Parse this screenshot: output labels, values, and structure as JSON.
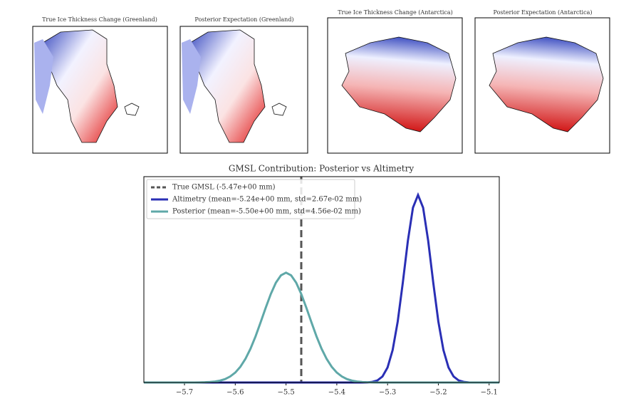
{
  "maps": [
    {
      "title": "True Ice Thickness Change (Greenland)"
    },
    {
      "title": "Posterior Expectation (Greenland)"
    },
    {
      "title": "True Ice Thickness Change (Antarctica)"
    },
    {
      "title": "Posterior Expectation (Antarctica)"
    }
  ],
  "chart_data": {
    "type": "line",
    "title": "GMSL Contribution: Posterior vs Altimetry",
    "x": [
      -5.78,
      -5.77,
      -5.76,
      -5.75,
      -5.74,
      -5.73,
      -5.72,
      -5.71,
      -5.7,
      -5.69,
      -5.68,
      -5.67,
      -5.66,
      -5.65,
      -5.64,
      -5.63,
      -5.62,
      -5.61,
      -5.6,
      -5.59,
      -5.58,
      -5.57,
      -5.56,
      -5.55,
      -5.54,
      -5.53,
      -5.52,
      -5.51,
      -5.5,
      -5.49,
      -5.48,
      -5.47,
      -5.46,
      -5.45,
      -5.44,
      -5.43,
      -5.42,
      -5.41,
      -5.4,
      -5.39,
      -5.38,
      -5.37,
      -5.36,
      -5.35,
      -5.34,
      -5.33,
      -5.32,
      -5.31,
      -5.3,
      -5.29,
      -5.28,
      -5.27,
      -5.26,
      -5.25,
      -5.24,
      -5.23,
      -5.22,
      -5.21,
      -5.2,
      -5.19,
      -5.18,
      -5.17,
      -5.16,
      -5.15,
      -5.14,
      -5.13,
      -5.12,
      -5.11,
      -5.1,
      -5.09,
      -5.08
    ],
    "series": [
      {
        "name": "Altimetry (mean=-5.24e+00 mm, std=2.67e-02 mm)",
        "color": "#2a2fb5",
        "values": [
          0,
          0,
          0,
          0,
          0,
          0,
          0,
          0,
          0,
          0,
          0,
          0,
          0,
          0,
          0,
          0,
          0,
          0,
          0,
          0,
          0,
          0,
          0,
          0,
          0,
          0,
          0,
          0,
          0,
          0,
          0,
          0,
          0,
          0,
          0,
          0,
          0,
          0,
          0,
          0,
          0,
          0,
          0,
          0,
          0.01,
          0.05,
          0.17,
          0.48,
          1.2,
          2.59,
          4.86,
          7.95,
          11.29,
          13.93,
          14.94,
          13.93,
          11.29,
          7.95,
          4.86,
          2.59,
          1.2,
          0.48,
          0.17,
          0.05,
          0.01,
          0,
          0,
          0,
          0,
          0,
          0
        ]
      },
      {
        "name": "Posterior (mean=-5.50e+00 mm, std=4.56e-02 mm)",
        "color": "#5fa8a8",
        "values": [
          0,
          0,
          0,
          0,
          0,
          0,
          0,
          0,
          0,
          0,
          0,
          0.01,
          0.02,
          0.04,
          0.08,
          0.15,
          0.27,
          0.48,
          0.79,
          1.25,
          1.88,
          2.69,
          3.68,
          4.8,
          5.96,
          7.05,
          7.95,
          8.54,
          8.75,
          8.54,
          7.95,
          7.05,
          5.96,
          4.8,
          3.68,
          2.69,
          1.88,
          1.25,
          0.79,
          0.48,
          0.27,
          0.15,
          0.08,
          0.04,
          0.02,
          0.01,
          0,
          0,
          0,
          0,
          0,
          0,
          0,
          0,
          0,
          0,
          0,
          0,
          0,
          0,
          0,
          0,
          0,
          0,
          0,
          0,
          0,
          0,
          0,
          0,
          0
        ]
      }
    ],
    "vlines": [
      {
        "name": "True GMSL (-5.47e+00 mm)",
        "x": -5.47,
        "color": "#555555"
      }
    ],
    "xlim": [
      -5.78,
      -5.08
    ],
    "ylim": [
      0,
      16.4
    ],
    "xticks": [
      {
        "value": -5.7,
        "label": "−5.7"
      },
      {
        "value": -5.6,
        "label": "−5.6"
      },
      {
        "value": -5.5,
        "label": "−5.5"
      },
      {
        "value": -5.4,
        "label": "−5.4"
      },
      {
        "value": -5.3,
        "label": "−5.3"
      },
      {
        "value": -5.2,
        "label": "−5.2"
      },
      {
        "value": -5.1,
        "label": "−5.1"
      }
    ],
    "legend": "upper left"
  }
}
